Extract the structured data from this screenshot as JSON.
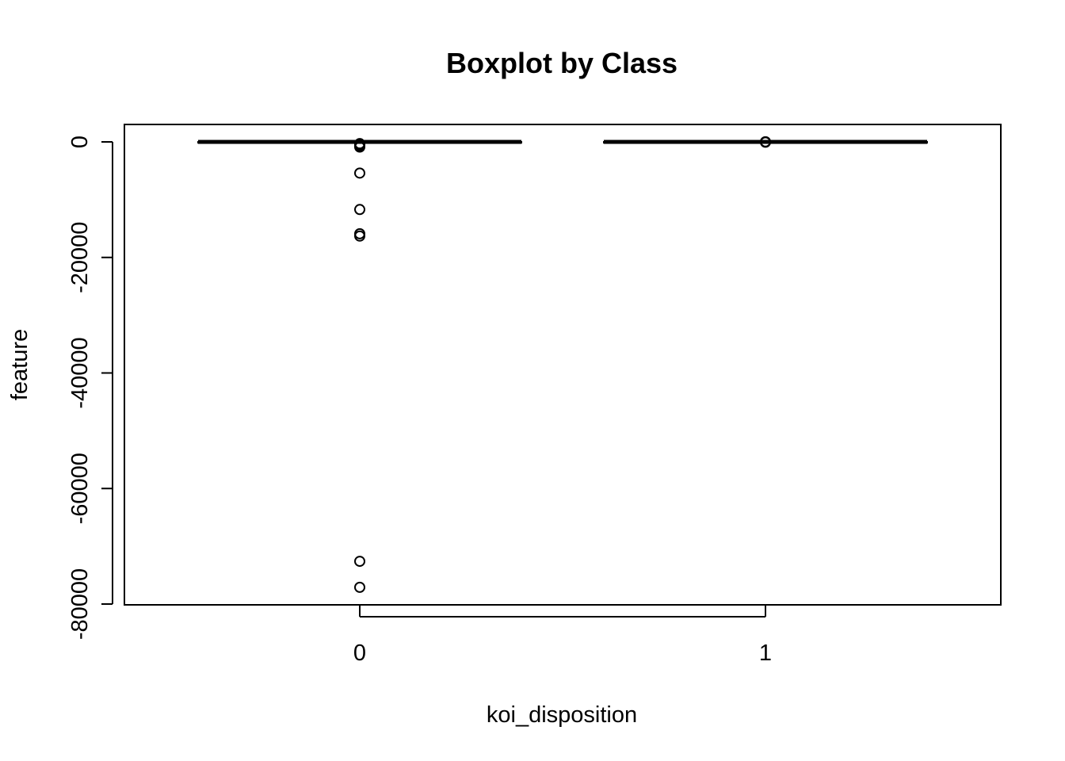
{
  "chart_data": {
    "type": "boxplot",
    "title": "Boxplot by Class",
    "xlabel": "koi_disposition",
    "ylabel": "feature",
    "categories": [
      "0",
      "1"
    ],
    "ylim": [
      -80000,
      0
    ],
    "yticks": [
      0,
      -20000,
      -40000,
      -60000,
      -80000
    ],
    "ytick_labels": [
      "0",
      "-20000",
      "-40000",
      "-60000",
      "-80000"
    ],
    "boxes": [
      {
        "category": "0",
        "median": 0,
        "q1": 0,
        "q3": 0,
        "whisker_low": 0,
        "whisker_high": 0,
        "outliers": [
          -300,
          -500,
          -700,
          -900,
          -5400,
          -11700,
          -15900,
          -16300,
          -72600,
          -77100
        ]
      },
      {
        "category": "1",
        "median": 0,
        "q1": 0,
        "q3": 0,
        "whisker_low": 0,
        "whisker_high": 0,
        "outliers": [
          0,
          -50,
          20
        ]
      }
    ],
    "grid": false,
    "legend": "none"
  }
}
